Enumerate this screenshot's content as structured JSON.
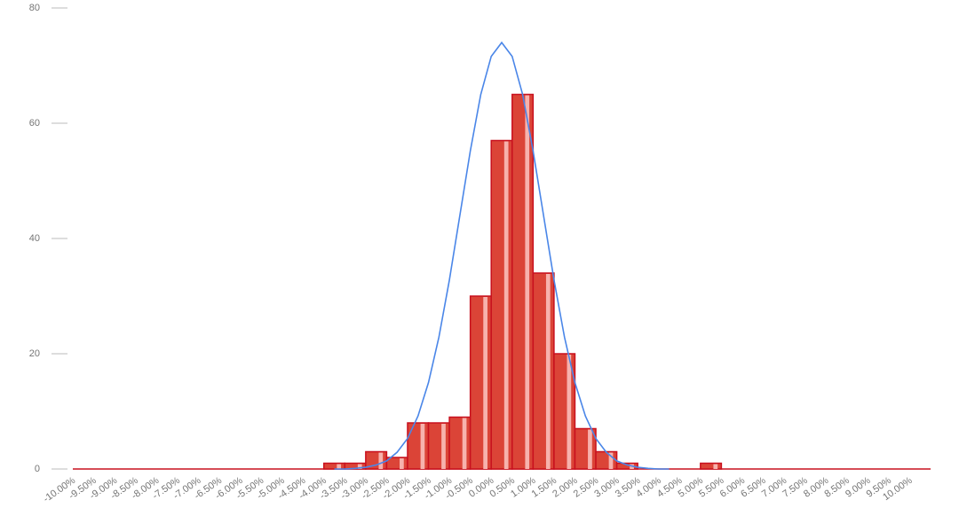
{
  "chart_data": {
    "type": "histogram",
    "bins": [
      -10.25,
      -9.75,
      -9.25,
      -8.75,
      -8.25,
      -7.75,
      -7.25,
      -6.75,
      -6.25,
      -5.75,
      -5.25,
      -4.75,
      -4.25,
      -3.75,
      -3.25,
      -2.75,
      -2.25,
      -1.75,
      -1.25,
      -0.75,
      -0.25,
      0.25,
      0.75,
      1.25,
      1.75,
      2.25,
      2.75,
      3.25,
      3.75,
      4.25,
      4.75,
      5.25,
      5.75,
      6.25,
      6.75,
      7.25,
      7.75,
      8.25,
      8.75,
      9.25,
      9.75,
      10.25
    ],
    "values": [
      0,
      0,
      0,
      0,
      0,
      0,
      0,
      0,
      0,
      0,
      0,
      0,
      1,
      1,
      3,
      2,
      8,
      8,
      9,
      30,
      57,
      65,
      34,
      20,
      7,
      3,
      1,
      0,
      0,
      0,
      1,
      0,
      0,
      0,
      0,
      0,
      0,
      0,
      0,
      0,
      0
    ],
    "color": "#db4437",
    "edge_color": "#c8101e",
    "stripe_color": "#f7b2ad",
    "curve": {
      "type": "line",
      "color": "#4a86e8",
      "x": [
        -4,
        -3.75,
        -3.5,
        -3.25,
        -3,
        -2.75,
        -2.5,
        -2.25,
        -2,
        -1.75,
        -1.5,
        -1.25,
        -1,
        -0.75,
        -0.5,
        -0.25,
        0,
        0.25,
        0.5,
        0.75,
        1,
        1.25,
        1.5,
        1.75,
        2,
        2.25,
        2.5,
        2.75,
        3,
        3.25,
        3.5,
        3.75,
        4
      ],
      "values": [
        0,
        0,
        0.1,
        0.3,
        0.7,
        1.4,
        2.9,
        5.3,
        9.2,
        15,
        22.9,
        32.8,
        44,
        55.2,
        65,
        71.6,
        74,
        71.6,
        65,
        55.2,
        44,
        32.8,
        22.9,
        15,
        9.2,
        5.3,
        2.9,
        1.4,
        0.7,
        0.3,
        0.1,
        0,
        0
      ]
    },
    "xlim": [
      -10.25,
      10.25
    ],
    "ylim": [
      0,
      80
    ],
    "yticks": [
      0,
      20,
      40,
      60,
      80
    ],
    "xticks": [
      {
        "value": -10,
        "label": "-10.00%"
      },
      {
        "value": -9.5,
        "label": "-9.50%"
      },
      {
        "value": -9,
        "label": "-9.00%"
      },
      {
        "value": -8.5,
        "label": "-8.50%"
      },
      {
        "value": -8,
        "label": "-8.00%"
      },
      {
        "value": -7.5,
        "label": "-7.50%"
      },
      {
        "value": -7,
        "label": "-7.00%"
      },
      {
        "value": -6.5,
        "label": "-6.50%"
      },
      {
        "value": -6,
        "label": "-6.00%"
      },
      {
        "value": -5.5,
        "label": "-5.50%"
      },
      {
        "value": -5,
        "label": "-5.00%"
      },
      {
        "value": -4.5,
        "label": "-4.50%"
      },
      {
        "value": -4,
        "label": "-4.00%"
      },
      {
        "value": -3.5,
        "label": "-3.50%"
      },
      {
        "value": -3,
        "label": "-3.00%"
      },
      {
        "value": -2.5,
        "label": "-2.50%"
      },
      {
        "value": -2,
        "label": "-2.00%"
      },
      {
        "value": -1.5,
        "label": "-1.50%"
      },
      {
        "value": -1,
        "label": "-1.00%"
      },
      {
        "value": -0.5,
        "label": "-0.50%"
      },
      {
        "value": 0,
        "label": "0.00%"
      },
      {
        "value": 0.5,
        "label": "0.50%"
      },
      {
        "value": 1,
        "label": "1.00%"
      },
      {
        "value": 1.5,
        "label": "1.50%"
      },
      {
        "value": 2,
        "label": "2.00%"
      },
      {
        "value": 2.5,
        "label": "2.50%"
      },
      {
        "value": 3,
        "label": "3.00%"
      },
      {
        "value": 3.5,
        "label": "3.50%"
      },
      {
        "value": 4,
        "label": "4.00%"
      },
      {
        "value": 4.5,
        "label": "4.50%"
      },
      {
        "value": 5,
        "label": "5.00%"
      },
      {
        "value": 5.5,
        "label": "5.50%"
      },
      {
        "value": 6,
        "label": "6.00%"
      },
      {
        "value": 6.5,
        "label": "6.50%"
      },
      {
        "value": 7,
        "label": "7.00%"
      },
      {
        "value": 7.5,
        "label": "7.50%"
      },
      {
        "value": 8,
        "label": "8.00%"
      },
      {
        "value": 8.5,
        "label": "8.50%"
      },
      {
        "value": 9,
        "label": "9.00%"
      },
      {
        "value": 9.5,
        "label": "9.50%"
      },
      {
        "value": 10,
        "label": "10.00%"
      }
    ]
  }
}
